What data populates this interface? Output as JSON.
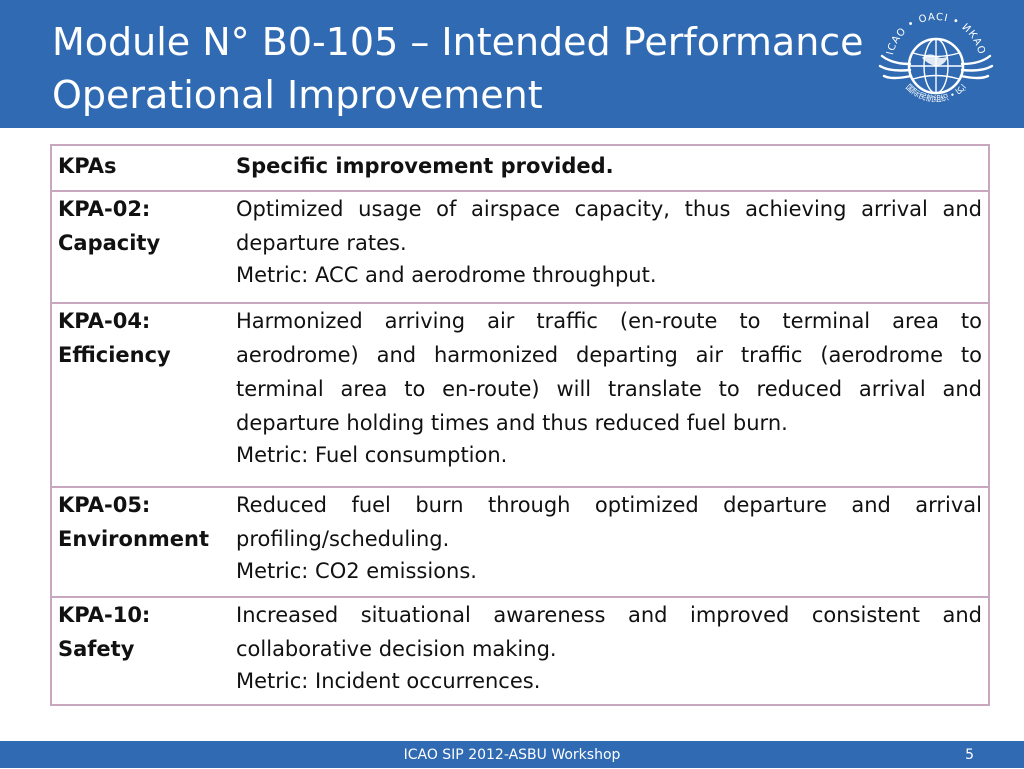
{
  "header": {
    "title_line1": "Module N° B0-105 – Intended Performance",
    "title_line2": "Operational Improvement",
    "logo": {
      "ring_text": "ICAO • OACI • ИКАО",
      "bottom_text": "国际民航组织 • ایکا"
    }
  },
  "table": {
    "headers": {
      "kpa": "KPAs",
      "improvement": "Specific improvement provided."
    },
    "rows": [
      {
        "kpa_code": "KPA-02:",
        "kpa_name": "Capacity",
        "description": "Optimized usage of airspace capacity, thus achieving arrival and departure rates.",
        "metric": "Metric: ACC and aerodrome throughput."
      },
      {
        "kpa_code": "KPA-04:",
        "kpa_name": "Efficiency",
        "description": "Harmonized arriving air traffic (en-route to terminal area to aerodrome) and harmonized departing air traffic (aerodrome to terminal area to en-route) will translate to reduced arrival and departure holding times and thus reduced fuel burn.",
        "metric": "Metric: Fuel consumption."
      },
      {
        "kpa_code": "KPA-05:",
        "kpa_name": "Environment",
        "description": "Reduced fuel burn through optimized departure and arrival profiling/scheduling.",
        "metric": "Metric: CO2 emissions."
      },
      {
        "kpa_code": "KPA-10:",
        "kpa_name": "Safety",
        "description": "Increased situational awareness and improved consistent and collaborative decision making.",
        "metric": "Metric: Incident occurrences."
      }
    ]
  },
  "footer": {
    "text": "ICAO SIP 2012-ASBU Workshop",
    "page_number": "5"
  },
  "colors": {
    "header_bg": "#2f6ab2",
    "table_border": "#c8a7bf"
  }
}
